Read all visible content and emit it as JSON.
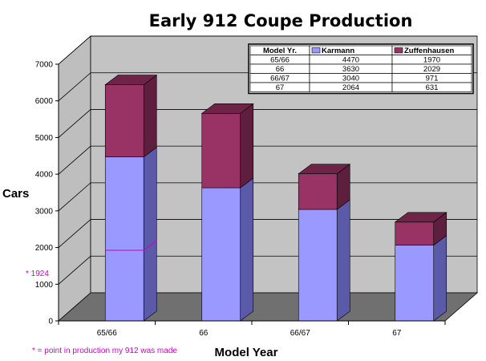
{
  "chart_data": {
    "type": "bar",
    "stacked": true,
    "three_d": true,
    "title": "Early 912 Coupe Production",
    "xlabel": "Model Year",
    "ylabel": "Cars",
    "categories": [
      "65/66",
      "66",
      "66/67",
      "67"
    ],
    "ylim": [
      0,
      7000
    ],
    "yticks": [
      "0",
      "1000",
      "2000",
      "3000",
      "4000",
      "5000",
      "6000",
      "7000"
    ],
    "grid": true,
    "series": [
      {
        "name": "Karmann",
        "values": [
          4470,
          3630,
          3040,
          2064
        ],
        "color": "#9999ff",
        "side_color": "#5a5aa8",
        "top_color": "#b8b8ff"
      },
      {
        "name": "Zuffenhausen",
        "values": [
          1970,
          2029,
          971,
          631
        ],
        "color": "#993366",
        "side_color": "#5e1f3e",
        "top_color": "#6e2446"
      }
    ],
    "data_table": {
      "header": [
        "Model Yr.",
        "Karmann",
        "Zuffenhausen"
      ],
      "rows": [
        [
          "65/66",
          "4470",
          "1970"
        ],
        [
          "66",
          "3630",
          "2029"
        ],
        [
          "66/67",
          "3040",
          "971"
        ],
        [
          "67",
          "2064",
          "631"
        ]
      ]
    },
    "annotation": {
      "value": 1924,
      "category": "65/66",
      "label": "* 1924",
      "color": "#cc00cc"
    },
    "footnote": "* = point in production my 912 was made"
  }
}
